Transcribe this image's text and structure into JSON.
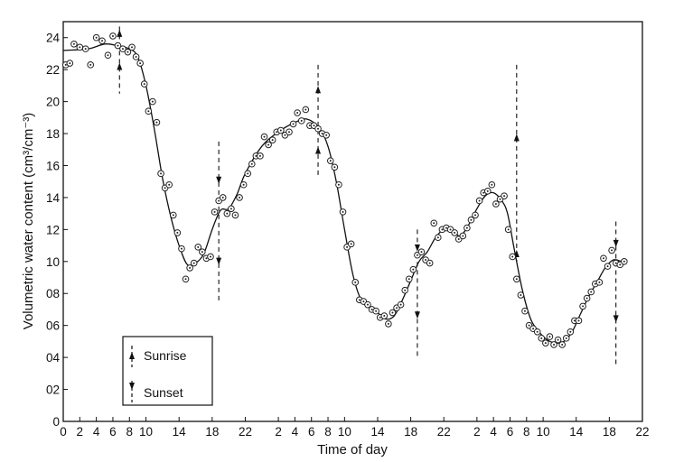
{
  "chart_data": {
    "type": "scatter",
    "title": "",
    "xlabel": "Time of day",
    "ylabel": "Volumetric water content (cm³/cm⁻³)",
    "xlim": [
      0,
      70
    ],
    "ylim": [
      0,
      25
    ],
    "x_tick_hours": [
      0,
      2,
      4,
      6,
      8,
      10,
      14,
      18,
      22,
      26,
      28,
      30,
      32,
      34,
      38,
      42,
      46,
      50,
      52,
      54,
      56,
      58,
      62,
      66,
      70
    ],
    "x_tick_labels": [
      "0",
      "2",
      "4",
      "6",
      "8",
      "10",
      "14",
      "18",
      "22",
      "2",
      "4",
      "6",
      "8",
      "10",
      "14",
      "18",
      "22",
      "2",
      "4",
      "6",
      "8",
      "10",
      "14",
      "18",
      "22"
    ],
    "y_ticks": [
      0,
      2,
      4,
      6,
      8,
      10,
      12,
      14,
      16,
      18,
      20,
      22,
      24
    ],
    "y_tick_labels": [
      "0",
      "02",
      "04",
      "06",
      "08",
      "10",
      "12",
      "14",
      "16",
      "18",
      "20",
      "22",
      "24"
    ],
    "legend": {
      "placement": "bottom-left",
      "entries": [
        {
          "label": "Sunrise",
          "marker": "up-arrow"
        },
        {
          "label": "Sunset",
          "marker": "down-arrow"
        }
      ]
    },
    "sunrise_hours": [
      6.8,
      30.8,
      54.8
    ],
    "sunset_hours": [
      18.8,
      42.8,
      66.8
    ],
    "series": [
      {
        "kind": "observed",
        "marker": "circle",
        "points": [
          [
            0.3,
            22.3
          ],
          [
            0.8,
            22.4
          ],
          [
            1.3,
            23.6
          ],
          [
            2,
            23.4
          ],
          [
            2.7,
            23.3
          ],
          [
            3.3,
            22.3
          ],
          [
            4,
            24
          ],
          [
            4.7,
            23.8
          ],
          [
            5.4,
            22.9
          ],
          [
            6,
            24.1
          ],
          [
            6.6,
            23.5
          ],
          [
            7.2,
            23.3
          ],
          [
            7.8,
            23.1
          ],
          [
            8.3,
            23.4
          ],
          [
            8.8,
            22.8
          ],
          [
            9.3,
            22.4
          ],
          [
            9.8,
            21.1
          ],
          [
            10.3,
            19.4
          ],
          [
            10.8,
            20.0
          ],
          [
            11.3,
            18.7
          ],
          [
            11.8,
            15.5
          ],
          [
            12.3,
            14.6
          ],
          [
            12.8,
            14.8
          ],
          [
            13.3,
            12.9
          ],
          [
            13.8,
            11.8
          ],
          [
            14.3,
            10.8
          ],
          [
            14.8,
            8.9
          ],
          [
            15.3,
            9.6
          ],
          [
            15.8,
            9.9
          ],
          [
            16.3,
            10.9
          ],
          [
            16.8,
            10.6
          ],
          [
            17.3,
            10.2
          ],
          [
            17.8,
            10.3
          ],
          [
            18.3,
            13.1
          ],
          [
            18.8,
            13.8
          ],
          [
            19.3,
            14.0
          ],
          [
            19.8,
            13.0
          ],
          [
            20.3,
            13.3
          ],
          [
            20.8,
            12.9
          ],
          [
            21.3,
            14.0
          ],
          [
            21.8,
            14.8
          ],
          [
            22.3,
            15.5
          ],
          [
            22.8,
            16.1
          ],
          [
            23.3,
            16.6
          ],
          [
            23.8,
            16.6
          ],
          [
            24.3,
            17.8
          ],
          [
            24.8,
            17.3
          ],
          [
            25.3,
            17.6
          ],
          [
            25.8,
            18.1
          ],
          [
            26.3,
            18.2
          ],
          [
            26.8,
            17.9
          ],
          [
            27.3,
            18.1
          ],
          [
            27.8,
            18.6
          ],
          [
            28.3,
            19.3
          ],
          [
            28.8,
            18.8
          ],
          [
            29.3,
            19.5
          ],
          [
            29.8,
            18.5
          ],
          [
            30.3,
            18.5
          ],
          [
            30.8,
            18.3
          ],
          [
            31.3,
            18.0
          ],
          [
            31.8,
            17.9
          ],
          [
            32.3,
            16.3
          ],
          [
            32.8,
            15.9
          ],
          [
            33.3,
            14.8
          ],
          [
            33.8,
            13.1
          ],
          [
            34.3,
            10.9
          ],
          [
            34.8,
            11.1
          ],
          [
            35.3,
            8.7
          ],
          [
            35.8,
            7.6
          ],
          [
            36.3,
            7.5
          ],
          [
            36.8,
            7.3
          ],
          [
            37.3,
            7.0
          ],
          [
            37.8,
            6.9
          ],
          [
            38.3,
            6.5
          ],
          [
            38.8,
            6.6
          ],
          [
            39.3,
            6.1
          ],
          [
            39.8,
            6.8
          ],
          [
            40.3,
            7.1
          ],
          [
            40.8,
            7.3
          ],
          [
            41.3,
            8.2
          ],
          [
            41.8,
            8.9
          ],
          [
            42.3,
            9.5
          ],
          [
            42.8,
            10.4
          ],
          [
            43.3,
            10.6
          ],
          [
            43.8,
            10.1
          ],
          [
            44.3,
            9.9
          ],
          [
            44.8,
            12.4
          ],
          [
            45.3,
            11.5
          ],
          [
            45.8,
            12.0
          ],
          [
            46.3,
            12.1
          ],
          [
            46.8,
            12.0
          ],
          [
            47.3,
            11.8
          ],
          [
            47.8,
            11.4
          ],
          [
            48.3,
            11.6
          ],
          [
            48.8,
            12.1
          ],
          [
            49.3,
            12.6
          ],
          [
            49.8,
            12.9
          ],
          [
            50.3,
            13.8
          ],
          [
            50.8,
            14.3
          ],
          [
            51.3,
            14.4
          ],
          [
            51.8,
            14.8
          ],
          [
            52.3,
            13.6
          ],
          [
            52.8,
            13.9
          ],
          [
            53.3,
            14.1
          ],
          [
            53.8,
            12.0
          ],
          [
            54.3,
            10.3
          ],
          [
            54.8,
            8.9
          ],
          [
            55.3,
            7.9
          ],
          [
            55.8,
            6.9
          ],
          [
            56.3,
            6.0
          ],
          [
            56.8,
            5.8
          ],
          [
            57.3,
            5.6
          ],
          [
            57.8,
            5.2
          ],
          [
            58.3,
            4.9
          ],
          [
            58.8,
            5.3
          ],
          [
            59.3,
            4.8
          ],
          [
            59.8,
            5.1
          ],
          [
            60.3,
            4.8
          ],
          [
            60.8,
            5.2
          ],
          [
            61.3,
            5.6
          ],
          [
            61.8,
            6.3
          ],
          [
            62.3,
            6.3
          ],
          [
            62.8,
            7.2
          ],
          [
            63.3,
            7.7
          ],
          [
            63.8,
            8.1
          ],
          [
            64.3,
            8.6
          ],
          [
            64.8,
            8.7
          ],
          [
            65.3,
            10.2
          ],
          [
            65.8,
            9.7
          ],
          [
            66.3,
            10.7
          ],
          [
            66.8,
            9.9
          ],
          [
            67.3,
            9.8
          ],
          [
            67.8,
            10.0
          ]
        ]
      },
      {
        "kind": "fitted",
        "marker": "line",
        "points": [
          [
            0,
            23.2
          ],
          [
            3,
            23.3
          ],
          [
            5,
            23.6
          ],
          [
            6.5,
            23.5
          ],
          [
            8,
            23.3
          ],
          [
            9,
            22.8
          ],
          [
            10,
            21.0
          ],
          [
            11,
            18.3
          ],
          [
            12,
            15.2
          ],
          [
            13,
            12.8
          ],
          [
            14,
            11.0
          ],
          [
            15,
            9.8
          ],
          [
            16,
            9.9
          ],
          [
            17,
            10.5
          ],
          [
            18,
            12.0
          ],
          [
            19,
            13.2
          ],
          [
            20,
            13.3
          ],
          [
            21,
            14.2
          ],
          [
            22,
            15.5
          ],
          [
            24,
            17.2
          ],
          [
            26,
            18.1
          ],
          [
            28,
            18.7
          ],
          [
            29.5,
            18.9
          ],
          [
            31,
            18.3
          ],
          [
            32,
            17.2
          ],
          [
            33,
            15.0
          ],
          [
            34,
            12.0
          ],
          [
            35,
            9.2
          ],
          [
            36,
            7.6
          ],
          [
            37,
            7.1
          ],
          [
            38,
            6.8
          ],
          [
            39,
            6.4
          ],
          [
            40,
            6.6
          ],
          [
            41,
            7.6
          ],
          [
            42,
            8.8
          ],
          [
            43,
            10.0
          ],
          [
            44,
            10.6
          ],
          [
            45,
            11.5
          ],
          [
            46,
            12.0
          ],
          [
            47,
            11.9
          ],
          [
            48,
            11.6
          ],
          [
            49,
            12.3
          ],
          [
            50,
            13.3
          ],
          [
            51,
            14.1
          ],
          [
            52,
            14.3
          ],
          [
            53,
            13.8
          ],
          [
            53.7,
            13.0
          ],
          [
            54.5,
            10.8
          ],
          [
            55.5,
            8.2
          ],
          [
            56.5,
            6.4
          ],
          [
            57.5,
            5.6
          ],
          [
            58.5,
            5.1
          ],
          [
            59.5,
            4.9
          ],
          [
            60.5,
            5.0
          ],
          [
            61.5,
            5.6
          ],
          [
            62.5,
            6.7
          ],
          [
            63.5,
            7.8
          ],
          [
            64.5,
            8.7
          ],
          [
            65.5,
            9.6
          ],
          [
            66.5,
            10.1
          ],
          [
            67.5,
            10.0
          ],
          [
            68,
            10.0
          ]
        ]
      }
    ]
  }
}
